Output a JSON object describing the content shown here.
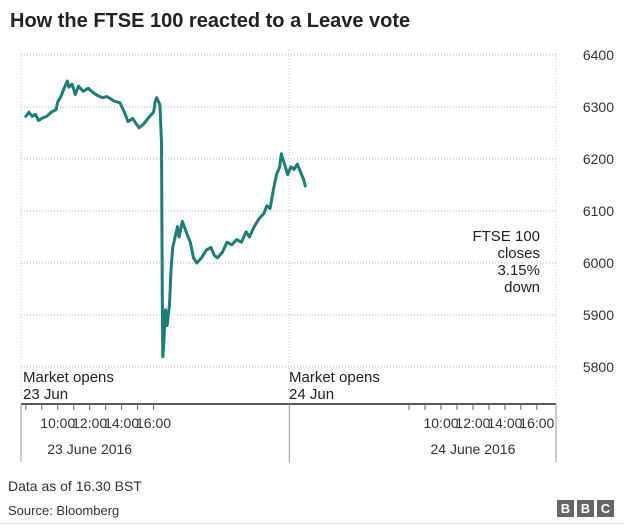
{
  "chart_data": {
    "type": "line",
    "title": "How the FTSE 100 reacted to a Leave vote",
    "ylabel": "",
    "ylim": [
      5780,
      6400
    ],
    "yticks": [
      5800,
      5900,
      6000,
      6100,
      6200,
      6300,
      6400
    ],
    "xlim": [
      7.7,
      41.2
    ],
    "day_divider": 24.5,
    "xticks": [
      {
        "x": 10,
        "label": "10:00"
      },
      {
        "x": 12,
        "label": "12:00"
      },
      {
        "x": 14,
        "label": "14:00"
      },
      {
        "x": 16,
        "label": "16:00"
      },
      {
        "x": 34,
        "label": "10:00"
      },
      {
        "x": 36,
        "label": "12:00"
      },
      {
        "x": 38,
        "label": "14:00"
      },
      {
        "x": 40,
        "label": "16:00"
      }
    ],
    "day_labels": [
      {
        "x": 12,
        "label": "23 June 2016"
      },
      {
        "x": 36,
        "label": "24 June 2016"
      }
    ],
    "series": [
      {
        "name": "FTSE 100",
        "color": "#1a7f76",
        "points": [
          [
            8.0,
            6282
          ],
          [
            8.2,
            6290
          ],
          [
            8.4,
            6282
          ],
          [
            8.6,
            6286
          ],
          [
            8.8,
            6274
          ],
          [
            9.0,
            6278
          ],
          [
            9.3,
            6282
          ],
          [
            9.6,
            6290
          ],
          [
            9.9,
            6295
          ],
          [
            10.0,
            6310
          ],
          [
            10.2,
            6320
          ],
          [
            10.4,
            6336
          ],
          [
            10.6,
            6350
          ],
          [
            10.7,
            6338
          ],
          [
            10.9,
            6344
          ],
          [
            11.1,
            6324
          ],
          [
            11.3,
            6340
          ],
          [
            11.6,
            6330
          ],
          [
            11.9,
            6336
          ],
          [
            12.2,
            6328
          ],
          [
            12.5,
            6322
          ],
          [
            12.8,
            6318
          ],
          [
            13.1,
            6320
          ],
          [
            13.5,
            6312
          ],
          [
            13.9,
            6308
          ],
          [
            14.2,
            6288
          ],
          [
            14.4,
            6272
          ],
          [
            14.7,
            6278
          ],
          [
            14.9,
            6268
          ],
          [
            15.1,
            6260
          ],
          [
            15.4,
            6268
          ],
          [
            15.7,
            6280
          ],
          [
            16.0,
            6290
          ],
          [
            16.1,
            6310
          ],
          [
            16.2,
            6318
          ],
          [
            16.4,
            6304
          ],
          [
            16.5,
            6232
          ],
          [
            16.55,
            5930
          ],
          [
            16.58,
            5820
          ],
          [
            16.65,
            5850
          ],
          [
            16.75,
            5910
          ],
          [
            16.85,
            5880
          ],
          [
            17.0,
            5920
          ],
          [
            17.1,
            5990
          ],
          [
            17.2,
            6030
          ],
          [
            17.35,
            6050
          ],
          [
            17.5,
            6070
          ],
          [
            17.6,
            6050
          ],
          [
            17.8,
            6080
          ],
          [
            18.1,
            6055
          ],
          [
            18.3,
            6040
          ],
          [
            18.5,
            6010
          ],
          [
            18.7,
            6000
          ],
          [
            19.0,
            6010
          ],
          [
            19.3,
            6025
          ],
          [
            19.6,
            6030
          ],
          [
            19.8,
            6015
          ],
          [
            20.0,
            6010
          ],
          [
            20.3,
            6020
          ],
          [
            20.6,
            6040
          ],
          [
            20.9,
            6035
          ],
          [
            21.2,
            6045
          ],
          [
            21.5,
            6040
          ],
          [
            21.8,
            6060
          ],
          [
            22.0,
            6050
          ],
          [
            22.3,
            6070
          ],
          [
            22.6,
            6085
          ],
          [
            22.9,
            6095
          ],
          [
            23.1,
            6110
          ],
          [
            23.3,
            6105
          ],
          [
            23.5,
            6140
          ],
          [
            23.7,
            6170
          ],
          [
            23.9,
            6185
          ],
          [
            24.0,
            6210
          ],
          [
            24.2,
            6190
          ],
          [
            24.4,
            6170
          ],
          [
            24.6,
            6185
          ],
          [
            24.8,
            6180
          ],
          [
            25.0,
            6190
          ],
          [
            25.2,
            6175
          ],
          [
            25.4,
            6160
          ],
          [
            25.5,
            6148
          ]
        ]
      }
    ],
    "annotations": [
      {
        "id": "opens1",
        "lines": [
          "Market opens",
          "23 Jun"
        ]
      },
      {
        "id": "opens2",
        "lines": [
          "Market opens",
          "24 Jun"
        ]
      },
      {
        "id": "close",
        "lines": [
          "FTSE 100",
          "closes",
          "3.15%",
          "down"
        ]
      }
    ]
  },
  "footer": {
    "note": "Data as of 16.30 BST",
    "source": "Source: Bloomberg",
    "logo_letters": [
      "B",
      "B",
      "C"
    ]
  }
}
